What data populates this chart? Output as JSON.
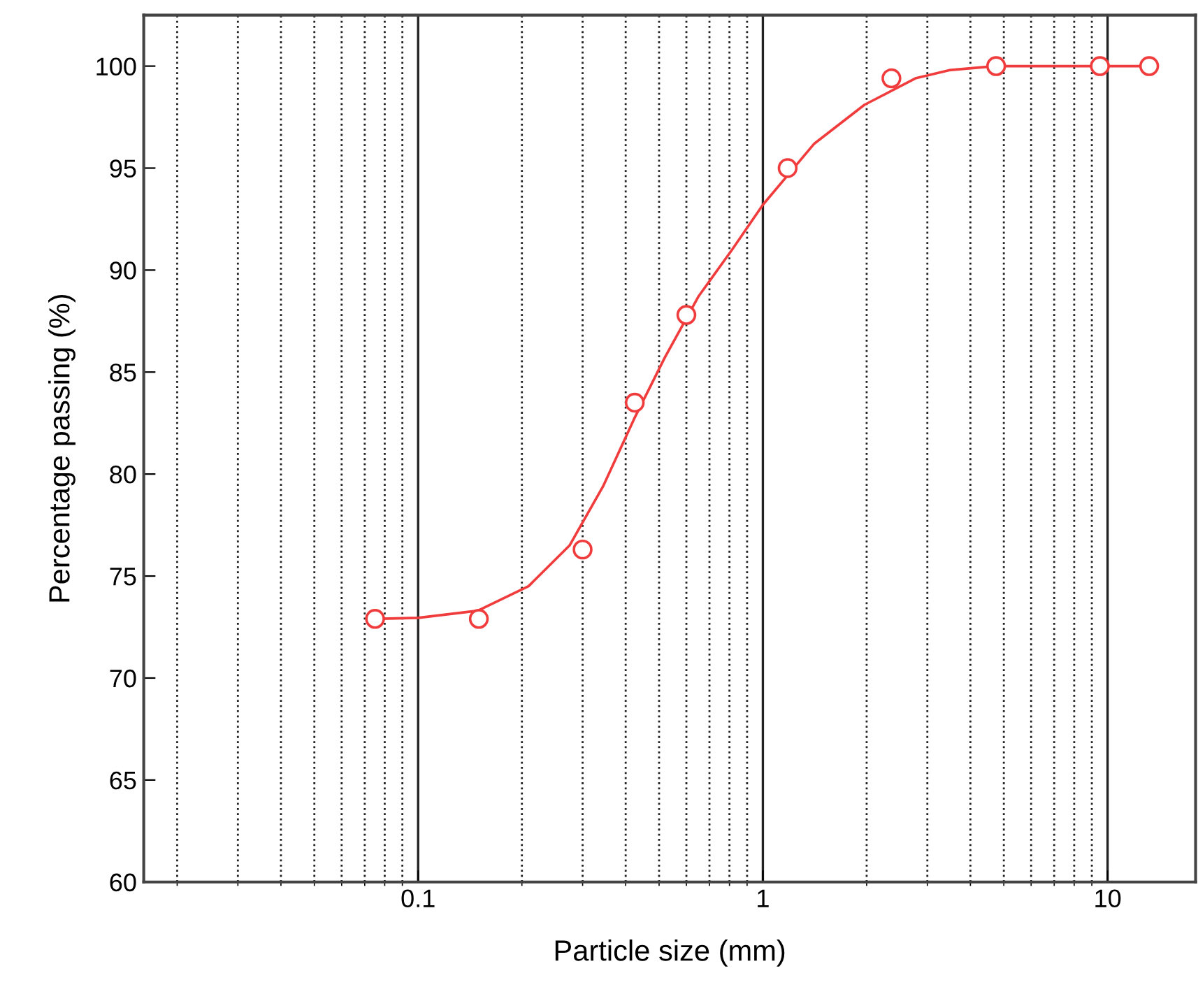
{
  "chart_data": {
    "type": "scatter",
    "xlabel": "Particle size (mm)",
    "ylabel": "Percentage passing (%)",
    "log": "x",
    "xlim": [
      0.016,
      18
    ],
    "ylim": [
      60,
      102.5
    ],
    "xticks": [
      0.1,
      1,
      10
    ],
    "yticks": [
      60,
      65,
      70,
      75,
      80,
      85,
      90,
      95,
      100
    ],
    "grid": "x",
    "series": [
      {
        "color": "#f03c3c",
        "marker": "circle",
        "x": [
          0.075,
          0.15,
          0.3,
          0.425,
          0.6,
          1.18,
          2.36,
          4.75,
          9.5,
          13.2
        ],
        "values": [
          72.9,
          72.9,
          76.3,
          83.5,
          87.8,
          95.0,
          99.4,
          100.0,
          100.0,
          100.0
        ]
      },
      {
        "type": "line",
        "color": "#f03c3c",
        "line_style": "solid",
        "x": [
          0.075,
          0.1,
          0.149,
          0.209,
          0.275,
          0.344,
          0.423,
          0.519,
          0.65,
          0.814,
          1.0,
          1.41,
          1.97,
          2.77,
          3.47,
          4.71,
          13.2
        ],
        "values": [
          72.9,
          72.95,
          73.3,
          74.5,
          76.5,
          79.4,
          82.7,
          85.7,
          88.7,
          91.0,
          93.2,
          96.2,
          98.1,
          99.4,
          99.8,
          100.0,
          100.0
        ]
      }
    ]
  }
}
